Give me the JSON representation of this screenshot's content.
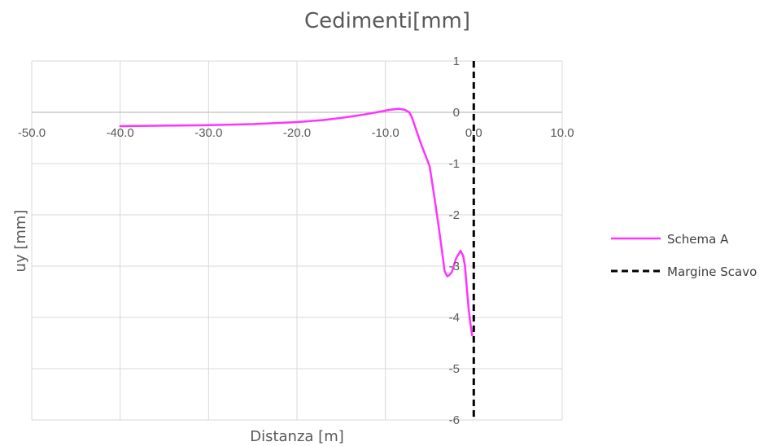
{
  "chart_data": {
    "type": "line",
    "title": "Cedimenti[mm]",
    "xlabel": "Distanza [m]",
    "ylabel": "uy [mm]",
    "xlim": [
      -50,
      10
    ],
    "ylim": [
      -6,
      1
    ],
    "x_ticks": [
      "-50.0",
      "-40.0",
      "-30.0",
      "-20.0",
      "-10.0",
      "0.0",
      "10.0"
    ],
    "y_ticks": [
      "1",
      "0",
      "-1",
      "-2",
      "-3",
      "-4",
      "-5",
      "-6"
    ],
    "grid": true,
    "legend": "right",
    "series": [
      {
        "name": "Schema A",
        "color": "#ff33ff",
        "style": "solid",
        "x": [
          -40.0,
          -35.0,
          -30.0,
          -25.0,
          -20.0,
          -17.0,
          -15.0,
          -13.0,
          -11.0,
          -9.5,
          -8.5,
          -7.8,
          -7.3,
          -7.0,
          -6.5,
          -6.0,
          -5.0,
          -4.5,
          -4.0,
          -3.6,
          -3.3,
          -3.0,
          -2.8,
          -2.5,
          -2.0,
          -1.5,
          -1.2,
          -1.0,
          -0.8,
          -0.6,
          -0.4,
          -0.2
        ],
        "y": [
          -0.27,
          -0.26,
          -0.25,
          -0.23,
          -0.19,
          -0.15,
          -0.11,
          -0.06,
          0.0,
          0.05,
          0.07,
          0.05,
          0.0,
          -0.1,
          -0.35,
          -0.6,
          -1.05,
          -1.6,
          -2.2,
          -2.7,
          -3.1,
          -3.2,
          -3.18,
          -3.12,
          -2.85,
          -2.7,
          -2.8,
          -3.0,
          -3.4,
          -3.8,
          -4.1,
          -4.35
        ]
      },
      {
        "name": "Margine Scavo",
        "color": "#000000",
        "style": "dashed",
        "x": [
          0.0,
          0.0
        ],
        "y": [
          1,
          -6
        ]
      }
    ]
  }
}
